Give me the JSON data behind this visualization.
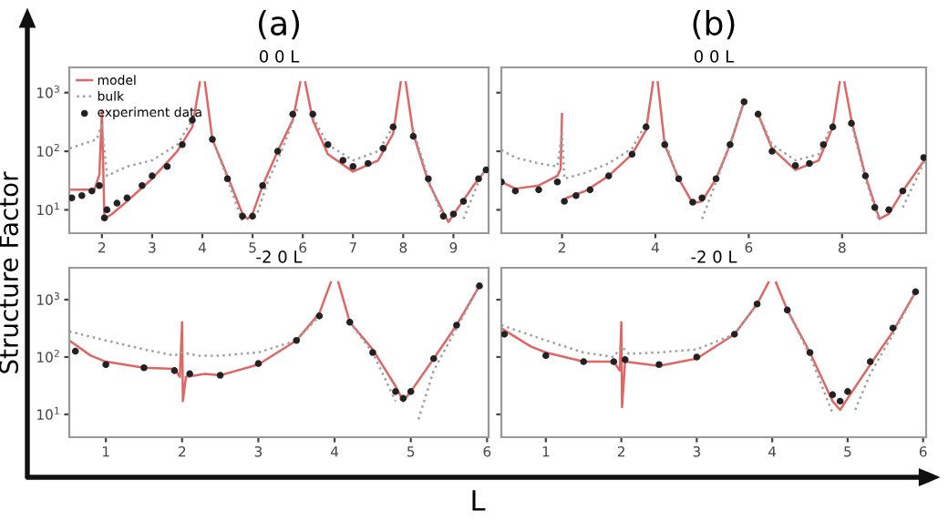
{
  "chart_data": [
    {
      "type": "line",
      "title": "(a)",
      "subtitle": "0 0 L",
      "ylabel": "Structure Factor",
      "log": true,
      "legend": "top left",
      "xlim": [
        1.35,
        9.7
      ],
      "xticks": [
        2,
        3,
        4,
        5,
        6,
        7,
        8,
        9
      ],
      "ylim": [
        4,
        2700
      ],
      "yticks": [
        {
          "value": 10,
          "label": "10$^{1}$"
        },
        {
          "value": 100,
          "label": "10$^{2}$"
        },
        {
          "value": 1000,
          "label": "10$^{3}$"
        }
      ],
      "series": [
        {
          "name": "model",
          "color": "#e06666",
          "line_style": "solid",
          "x": [
            1.36,
            1.6,
            1.85,
            1.95,
            2.0,
            2.05,
            2.2,
            2.5,
            3.0,
            3.5,
            3.8,
            3.95,
            4.0,
            4.05,
            4.2,
            4.5,
            4.8,
            4.9,
            5.0,
            5.2,
            5.5,
            5.8,
            5.95,
            6.0,
            6.05,
            6.2,
            6.5,
            7.0,
            7.5,
            7.8,
            7.95,
            8.0,
            8.05,
            8.2,
            8.5,
            8.8,
            8.9,
            9.1,
            9.4,
            9.7
          ],
          "values": [
            22,
            22,
            22,
            40,
            480,
            7,
            8.5,
            14,
            34,
            100,
            260,
            1500,
            null,
            1500,
            160,
            38,
            8.5,
            7,
            8.5,
            26,
            100,
            340,
            1500,
            null,
            1500,
            340,
            89,
            45,
            70,
            200,
            1500,
            null,
            1500,
            200,
            30,
            9,
            6.2,
            11,
            26,
            55
          ]
        },
        {
          "name": "bulk",
          "color": "#a0a0a0",
          "line_style": "dotted",
          "x": [
            1.36,
            1.9,
            2.0,
            2.1,
            2.5,
            3.0,
            3.5,
            3.8,
            4.0,
            4.2,
            4.5,
            4.8,
            4.9,
            5.0,
            5.1,
            5.3,
            5.6,
            5.9,
            6.0,
            6.2,
            6.5,
            7.0,
            7.5,
            7.8,
            8.0,
            8.2,
            8.5,
            8.8,
            8.9,
            9.05,
            9.2,
            9.5,
            9.7
          ],
          "values": [
            112,
            160,
            300,
            38,
            55,
            70,
            130,
            340,
            null,
            160,
            34,
            6.2,
            null,
            null,
            9,
            30,
            112,
            550,
            null,
            380,
            130,
            70,
            100,
            260,
            null,
            230,
            34,
            7,
            null,
            null,
            7,
            30,
            62
          ]
        },
        {
          "name": "experiment data",
          "type": "scatter",
          "color": "#222222",
          "marker": "circle",
          "x": [
            1.4,
            1.6,
            1.8,
            1.95,
            2.05,
            2.1,
            2.3,
            2.5,
            2.8,
            3.0,
            3.3,
            3.6,
            3.8,
            4.2,
            4.5,
            4.8,
            5.0,
            5.2,
            5.5,
            5.8,
            6.2,
            6.5,
            6.8,
            7.0,
            7.3,
            7.6,
            7.8,
            8.2,
            8.5,
            8.8,
            9.0,
            9.2,
            9.5,
            9.65
          ],
          "values": [
            16,
            17.5,
            21,
            26,
            7.3,
            10,
            13,
            16,
            26,
            38,
            55,
            130,
            340,
            160,
            34,
            7.8,
            7.8,
            26,
            100,
            430,
            430,
            130,
            70,
            55,
            62,
            112,
            260,
            180,
            34,
            7.8,
            8.5,
            14,
            34,
            48
          ]
        }
      ]
    },
    {
      "type": "line",
      "title": "(b)",
      "subtitle": "0 0 L",
      "log": true,
      "tick_labels": "x",
      "xlim": [
        0.7,
        9.8
      ],
      "xticks": [
        2,
        4,
        6,
        8
      ],
      "ylim": [
        4,
        2700
      ],
      "yticks": [
        {
          "value": 10,
          "label": null
        },
        {
          "value": 100,
          "label": null
        },
        {
          "value": 1000,
          "label": null
        }
      ],
      "series": [
        {
          "color": "#e06666",
          "line_style": "solid",
          "x": [
            0.7,
            1.0,
            1.5,
            1.9,
            1.97,
            2.0,
            2.02,
            2.1,
            2.5,
            3.0,
            3.5,
            3.8,
            3.95,
            4.0,
            4.05,
            4.2,
            4.5,
            4.8,
            5.0,
            5.3,
            5.6,
            5.9,
            6.0,
            6.2,
            6.5,
            7.0,
            7.5,
            7.8,
            7.95,
            8.0,
            8.05,
            8.2,
            8.5,
            8.8,
            9.0,
            9.3,
            9.8
          ],
          "values": [
            30,
            23,
            26,
            38,
            50,
            430,
            null,
            16,
            21,
            38,
            89,
            230,
            1500,
            null,
            1500,
            130,
            34,
            13,
            14,
            34,
            130,
            700,
            null,
            430,
            112,
            48,
            70,
            260,
            1500,
            null,
            1500,
            340,
            38,
            7,
            8.5,
            21,
            78
          ]
        },
        {
          "color": "#a0a0a0",
          "line_style": "dotted",
          "x": [
            0.7,
            1.0,
            1.5,
            1.9,
            2.0,
            2.05,
            2.5,
            3.0,
            3.5,
            3.8,
            4.0,
            4.2,
            4.5,
            4.8,
            4.9,
            5.0,
            5.3,
            5.6,
            5.9,
            6.0,
            6.2,
            6.5,
            7.0,
            7.5,
            7.8,
            8.0,
            8.2,
            8.5,
            8.8,
            8.9,
            9.1,
            9.3,
            9.8
          ],
          "values": [
            105,
            78,
            62,
            55,
            200,
            34,
            43,
            62,
            112,
            300,
            null,
            160,
            30,
            null,
            null,
            7,
            30,
            130,
            700,
            null,
            430,
            130,
            70,
            89,
            300,
            null,
            300,
            34,
            6.2,
            null,
            null,
            11,
            78
          ]
        },
        {
          "type": "scatter",
          "color": "#222222",
          "marker": "circle",
          "x": [
            0.7,
            1.0,
            1.5,
            1.9,
            2.05,
            2.3,
            2.6,
            3.0,
            3.5,
            3.8,
            4.2,
            4.5,
            4.8,
            5.0,
            5.3,
            5.6,
            5.9,
            6.2,
            6.5,
            7.0,
            7.3,
            7.6,
            7.8,
            8.2,
            8.5,
            8.7,
            9.0,
            9.3,
            9.75
          ],
          "values": [
            30,
            21,
            22,
            30,
            14,
            17.5,
            22,
            38,
            89,
            260,
            130,
            34,
            13.5,
            16,
            34,
            130,
            700,
            430,
            100,
            57,
            62,
            130,
            260,
            300,
            38,
            11,
            10,
            21,
            78
          ]
        }
      ]
    },
    {
      "type": "line",
      "subtitle": "-2 0 L",
      "xlabel": "L",
      "log": true,
      "xlim": [
        0.52,
        6.02
      ],
      "xticks": [
        1,
        2,
        3,
        4,
        5,
        6
      ],
      "ylim": [
        4,
        3600
      ],
      "yticks": [
        {
          "value": 10,
          "label": "10$^{1}$"
        },
        {
          "value": 100,
          "label": "10$^{2}$"
        },
        {
          "value": 1000,
          "label": "10$^{3}$"
        }
      ],
      "series": [
        {
          "color": "#e06666",
          "line_style": "solid",
          "x": [
            0.52,
            0.8,
            1.0,
            1.5,
            1.9,
            1.97,
            2.0,
            2.01,
            2.05,
            2.3,
            2.5,
            3.0,
            3.5,
            3.8,
            3.95,
            4.0,
            4.05,
            4.2,
            4.5,
            4.8,
            4.9,
            5.0,
            5.3,
            5.6,
            5.9
          ],
          "values": [
            195,
            106,
            83,
            65,
            62,
            45,
            405,
            17,
            45,
            51,
            48,
            74,
            195,
            580,
            2000,
            null,
            2000,
            405,
            136,
            31,
            17,
            25,
            94,
            360,
            1740
          ]
        },
        {
          "color": "#a0a0a0",
          "line_style": "dotted",
          "x": [
            0.52,
            1.0,
            1.5,
            1.9,
            2.0,
            2.2,
            2.5,
            3.0,
            3.5,
            3.8,
            4.0,
            4.2,
            4.5,
            4.8,
            4.9,
            5.0,
            5.1,
            5.3,
            5.6,
            5.9
          ],
          "values": [
            280,
            195,
            136,
            106,
            120,
            106,
            106,
            120,
            195,
            520,
            null,
            405,
            120,
            17,
            null,
            null,
            8.2,
            58,
            320,
            1740
          ]
        },
        {
          "type": "scatter",
          "color": "#222222",
          "marker": "circle",
          "x": [
            0.6,
            1.0,
            1.5,
            1.9,
            2.1,
            2.5,
            3.0,
            3.5,
            3.8,
            4.2,
            4.5,
            4.8,
            4.9,
            5.0,
            5.3,
            5.6,
            5.9
          ],
          "values": [
            126,
            74,
            65,
            58,
            51,
            48,
            77,
            195,
            520,
            405,
            120,
            25,
            19,
            25,
            94,
            360,
            1740
          ]
        }
      ]
    },
    {
      "type": "line",
      "subtitle": "-2 0 L",
      "log": true,
      "tick_labels": "x",
      "xlim": [
        0.41,
        6.04
      ],
      "xticks": [
        1,
        2,
        3,
        4,
        5,
        6
      ],
      "ylim": [
        4,
        3600
      ],
      "yticks": [
        {
          "value": 10,
          "label": null
        },
        {
          "value": 100,
          "label": null
        },
        {
          "value": 1000,
          "label": null
        }
      ],
      "series": [
        {
          "color": "#e06666",
          "line_style": "solid",
          "x": [
            0.41,
            0.8,
            1.0,
            1.5,
            1.9,
            1.98,
            2.0,
            2.01,
            2.05,
            2.5,
            3.0,
            3.5,
            3.8,
            3.95,
            4.0,
            4.05,
            4.2,
            4.5,
            4.8,
            4.9,
            5.0,
            5.3,
            5.6,
            5.9
          ],
          "values": [
            317,
            153,
            120,
            83,
            83,
            58,
            405,
            13.4,
            83,
            70,
            94,
            250,
            840,
            2000,
            null,
            2000,
            660,
            120,
            17,
            12,
            19,
            74,
            280,
            1370
          ]
        },
        {
          "color": "#a0a0a0",
          "line_style": "dotted",
          "x": [
            0.41,
            1.0,
            1.5,
            1.9,
            2.0,
            2.1,
            2.5,
            3.0,
            3.5,
            3.8,
            4.0,
            4.2,
            4.5,
            4.8,
            4.9,
            5.0,
            5.1,
            5.3,
            5.6,
            5.9
          ],
          "values": [
            360,
            195,
            120,
            100,
            153,
            114,
            120,
            136,
            250,
            840,
            null,
            660,
            106,
            10.5,
            null,
            null,
            12,
            51,
            250,
            1370
          ]
        },
        {
          "type": "scatter",
          "color": "#222222",
          "marker": "circle",
          "x": [
            0.45,
            1.0,
            1.5,
            1.9,
            2.05,
            2.5,
            3.0,
            3.5,
            3.8,
            4.2,
            4.5,
            4.8,
            4.9,
            5.0,
            5.3,
            5.6,
            5.9
          ],
          "values": [
            250,
            106,
            83,
            83,
            90,
            74,
            100,
            250,
            840,
            660,
            120,
            22,
            17,
            25,
            83,
            320,
            1370
          ]
        }
      ]
    }
  ]
}
